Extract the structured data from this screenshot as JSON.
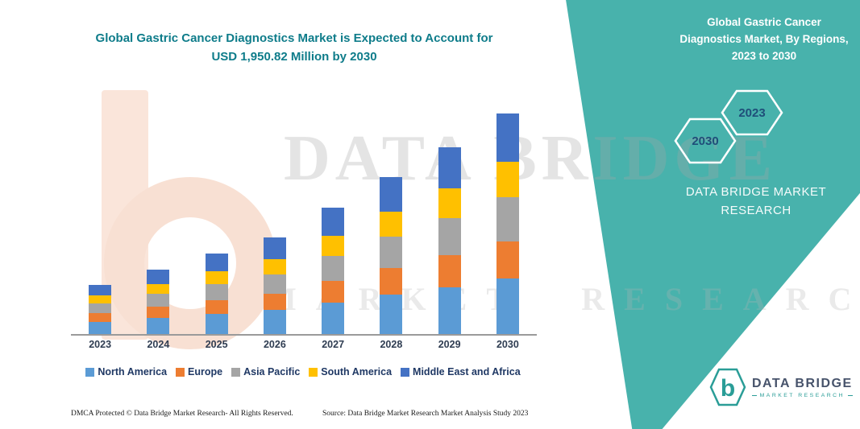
{
  "chart_data": {
    "type": "bar",
    "stacked": true,
    "title": "Global Gastric Cancer Diagnostics Market is Expected to Account for USD 1,950.82 Million by 2030",
    "categories": [
      "2023",
      "2024",
      "2025",
      "2026",
      "2027",
      "2028",
      "2029",
      "2030"
    ],
    "series": [
      {
        "name": "North America",
        "color": "#5B9BD5",
        "values": [
          110,
          143,
          178,
          213,
          279,
          348,
          414,
          488
        ]
      },
      {
        "name": "Europe",
        "color": "#ED7D31",
        "values": [
          73,
          97,
          121,
          145,
          190,
          236,
          281,
          332
        ]
      },
      {
        "name": "Asia Pacific",
        "color": "#A5A5A5",
        "values": [
          86,
          114,
          142,
          170,
          223,
          278,
          331,
          390
        ]
      },
      {
        "name": "South America",
        "color": "#FFC000",
        "values": [
          69,
          91,
          114,
          136,
          178,
          222,
          265,
          312
        ]
      },
      {
        "name": "Middle East and Africa",
        "color": "#4472C4",
        "values": [
          95,
          125,
          156,
          187,
          245,
          306,
          364,
          429
        ]
      }
    ],
    "unit": "USD Million",
    "ylim": [
      0,
      2000
    ],
    "grid": false,
    "legend_position": "bottom",
    "xlabel": "",
    "ylabel": ""
  },
  "right_panel": {
    "title": "Global Gastric Cancer Diagnostics Market, By Regions, 2023 to 2030",
    "hexagons": [
      "2030",
      "2023"
    ],
    "brand": "DATA BRIDGE MARKET RESEARCH"
  },
  "watermark": {
    "line1": "DATA BRIDGE",
    "line2": "MARKET RESEARCH"
  },
  "logo": {
    "b": "b",
    "name": "DATA BRIDGE",
    "sub": "MARKET RESEARCH"
  },
  "footer": {
    "dmca": "DMCA Protected © Data Bridge Market Research-  All Rights Reserved.",
    "source": "Source: Data Bridge Market Research  Market Analysis Study 2023"
  },
  "colors": {
    "teal_band": "#48B2AC",
    "title_teal": "#0E7C8A",
    "navy": "#1F3864"
  }
}
